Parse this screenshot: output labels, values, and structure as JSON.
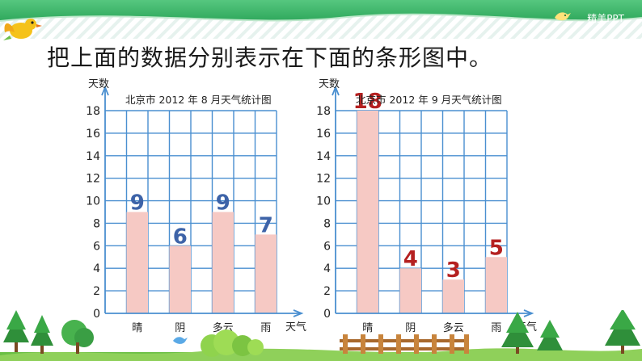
{
  "heading": "把上面的数据分别表示在下面的条形图中。",
  "logo": {
    "text": "精美PPT",
    "icon": "bird-icon"
  },
  "colors": {
    "bar_fill": "#f6c9c4",
    "grid": "#4a8fd0",
    "label_blue": "#3d63a8",
    "label_red": "#b52020",
    "banner": "#3db86a",
    "sky_stripes": "#e6f2ee"
  },
  "chart_data": [
    {
      "type": "bar",
      "title": "北京市 2012 年 8 月天气统计图",
      "ylabel": "天数",
      "xlabel": "天气",
      "categories": [
        "晴",
        "阴",
        "多云",
        "雨"
      ],
      "values": [
        9,
        6,
        9,
        7
      ],
      "data_labels": [
        "9",
        "6",
        "9",
        "7"
      ],
      "data_label_color": "#3d63a8",
      "ylim": [
        0,
        18
      ],
      "yticks": [
        "0",
        "2",
        "4",
        "6",
        "8",
        "10",
        "12",
        "14",
        "16",
        "18"
      ],
      "grid": true
    },
    {
      "type": "bar",
      "title": "北京市 2012 年 9 月天气统计图",
      "ylabel": "天数",
      "xlabel": "天气",
      "categories": [
        "晴",
        "阴",
        "多云",
        "雨"
      ],
      "values": [
        18,
        4,
        3,
        5
      ],
      "data_labels": [
        "18",
        "4",
        "3",
        "5"
      ],
      "data_label_color": "#b52020",
      "ylim": [
        0,
        18
      ],
      "yticks": [
        "0",
        "2",
        "4",
        "6",
        "8",
        "10",
        "12",
        "14",
        "16",
        "18"
      ],
      "grid": true
    }
  ]
}
